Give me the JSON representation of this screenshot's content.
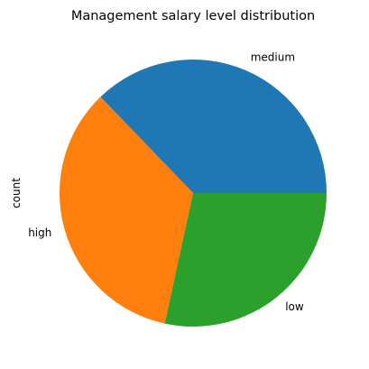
{
  "chart_data": {
    "type": "pie",
    "title": "Management salary level distribution",
    "ylabel": "count",
    "xlabel": "",
    "categories": [
      "medium",
      "high",
      "low"
    ],
    "values": [
      0.372,
      0.344,
      0.284
    ],
    "colors": [
      "#1f77b4",
      "#ff7f0e",
      "#2ca02c"
    ],
    "start_angle_deg": 0,
    "direction": "counterclockwise",
    "legend": "none"
  }
}
